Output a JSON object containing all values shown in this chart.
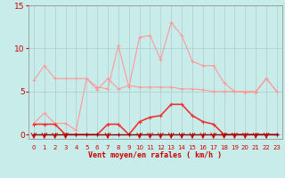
{
  "xlabel": "Vent moyen/en rafales ( km/h )",
  "background_color": "#c8ecea",
  "grid_color": "#aacccc",
  "x_values": [
    0,
    1,
    2,
    3,
    4,
    5,
    6,
    7,
    8,
    9,
    10,
    11,
    12,
    13,
    14,
    15,
    16,
    17,
    18,
    19,
    20,
    21,
    22,
    23
  ],
  "ylim": [
    -0.5,
    15
  ],
  "yticks": [
    0,
    5,
    10,
    15
  ],
  "line_rafales": {
    "y": [
      6.3,
      8.0,
      6.5,
      6.5,
      6.5,
      6.5,
      5.5,
      5.3,
      10.3,
      5.5,
      11.3,
      11.5,
      8.7,
      13.0,
      11.5,
      8.5,
      8.0,
      8.0,
      6.0,
      5.0,
      5.0,
      5.0,
      6.5,
      5.0
    ],
    "color": "#ff9999",
    "linewidth": 0.8,
    "marker": "+"
  },
  "line_moyen": {
    "y": [
      1.3,
      2.5,
      1.3,
      1.3,
      0.5,
      6.5,
      5.2,
      6.5,
      5.3,
      5.7,
      5.5,
      5.5,
      5.5,
      5.5,
      5.3,
      5.3,
      5.2,
      5.0,
      5.0,
      5.0,
      4.9,
      4.9,
      6.5,
      5.0
    ],
    "color": "#ff9999",
    "linewidth": 0.8,
    "marker": "+"
  },
  "line_red1": {
    "y": [
      1.2,
      1.2,
      1.2,
      0.0,
      0.0,
      0.0,
      0.0,
      1.2,
      1.2,
      0.0,
      1.5,
      2.0,
      2.2,
      3.5,
      3.5,
      2.2,
      1.5,
      1.2,
      0.0,
      0.0,
      0.0,
      0.0,
      0.0,
      0.0
    ],
    "color": "#ee3333",
    "linewidth": 1.2,
    "marker": "+"
  },
  "line_red2": {
    "y": [
      0.0,
      0.0,
      0.0,
      0.0,
      0.0,
      0.0,
      0.0,
      0.0,
      0.0,
      0.0,
      0.0,
      0.0,
      0.0,
      0.0,
      0.0,
      0.0,
      0.0,
      0.0,
      0.0,
      0.0,
      0.0,
      0.0,
      0.0,
      0.0
    ],
    "color": "#880000",
    "linewidth": 1.0,
    "marker": "+"
  },
  "arrows_x": [
    0,
    1,
    2,
    3,
    7,
    10,
    11,
    12,
    13,
    14,
    15,
    16,
    17,
    18,
    19,
    20,
    21,
    22
  ],
  "arrow_color": "#cc0000",
  "tick_color": "#cc0000",
  "label_color": "#cc0000",
  "xtick_fontsize": 5.0,
  "ytick_fontsize": 6.5,
  "xlabel_fontsize": 6.0
}
